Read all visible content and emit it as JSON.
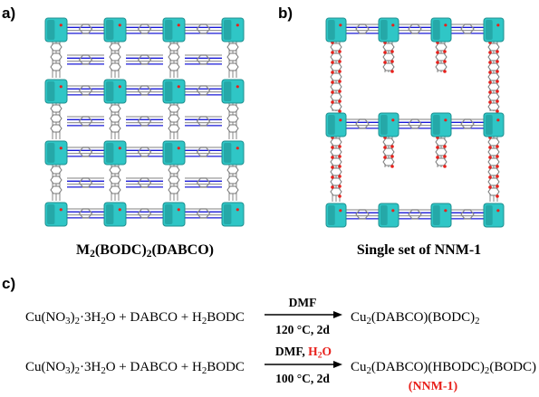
{
  "panels": {
    "a": {
      "label": "a)"
    },
    "b": {
      "label": "b)"
    },
    "c": {
      "label": "c)"
    }
  },
  "captions": {
    "a": {
      "pre": "M",
      "sub1": "2",
      "mid": "(BODC)",
      "sub2": "2",
      "post": "(DABCO)"
    },
    "b": {
      "text": "Single set of NNM-1"
    }
  },
  "reactions": [
    {
      "reactant": {
        "p1": "Cu(NO",
        "s1": "3",
        "p2": ")",
        "s2": "2",
        "p3": "·3H",
        "s3": "2",
        "p4": "O + DABCO + H",
        "s4": "2",
        "p5": "BODC"
      },
      "conditions_top": "DMF",
      "conditions_top_red": "",
      "conditions_bottom": "120 °C, 2d",
      "product": {
        "p1": "Cu",
        "s1": "2",
        "p2": "(DABCO)(BODC)",
        "s2": "2"
      }
    },
    {
      "reactant": {
        "p1": "Cu(NO",
        "s1": "3",
        "p2": ")",
        "s2": "2",
        "p3": "·3H",
        "s3": "2",
        "p4": "O + DABCO + H",
        "s4": "2",
        "p5": "BODC"
      },
      "conditions_top": "DMF, ",
      "conditions_top_red": "H2O",
      "conditions_bottom": "100 °C, 2d",
      "product": {
        "p1": "Cu",
        "s1": "2",
        "p2": "(DABCO)(HBODC)",
        "s2": "2",
        "p3": "(BODC)"
      },
      "product_label": "(NNM-1)"
    }
  ],
  "colors": {
    "teal": "#2fc6c6",
    "teal_dark": "#1e8f8f",
    "blue": "#1a1ad6",
    "gray": "#9a9a9a",
    "red": "#e8201b"
  }
}
